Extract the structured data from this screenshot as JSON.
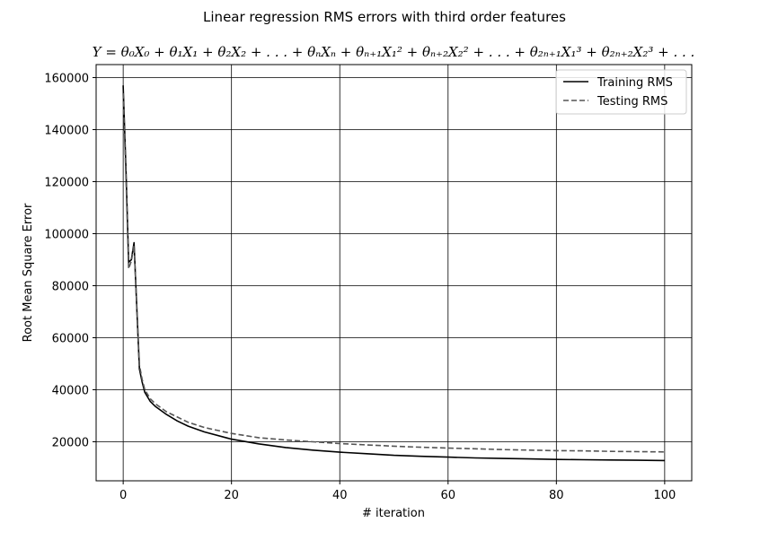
{
  "chart_data": {
    "type": "line",
    "title": "Linear regression RMS errors with third order features",
    "subtitle": "Y = θ₀X₀ + θ₁X₁ + θ₂X₂ + . . . + θₙXₙ + θₙ₊₁X₁² + θₙ₊₂X₂² + . . . + θ₂ₙ₊₁X₁³ + θ₂ₙ₊₂X₂³ + . . .",
    "xlabel": "# iteration",
    "ylabel": "Root Mean Square Error",
    "xlim": [
      -5,
      105
    ],
    "ylim": [
      5000,
      165000
    ],
    "xticks": [
      0,
      20,
      40,
      60,
      80,
      100
    ],
    "yticks": [
      20000,
      40000,
      60000,
      80000,
      100000,
      120000,
      140000,
      160000
    ],
    "grid": true,
    "legend_position": "top-right",
    "series": [
      {
        "name": "Training RMS",
        "style": "solid",
        "color": "#000000",
        "x": [
          0,
          0.5,
          1,
          1.5,
          2,
          2.5,
          3,
          3.5,
          4,
          5,
          6,
          8,
          10,
          12,
          15,
          20,
          25,
          30,
          35,
          40,
          45,
          50,
          55,
          60,
          65,
          70,
          75,
          80,
          85,
          90,
          95,
          100
        ],
        "y": [
          157000,
          125000,
          89000,
          90000,
          96500,
          72000,
          48000,
          43000,
          39000,
          35500,
          33500,
          30500,
          28000,
          26000,
          23800,
          21000,
          19200,
          17800,
          16800,
          16000,
          15400,
          14800,
          14400,
          14100,
          13800,
          13600,
          13400,
          13200,
          13100,
          13000,
          12900,
          12800
        ]
      },
      {
        "name": "Testing RMS",
        "style": "dashed",
        "color": "#555555",
        "x": [
          0,
          0.5,
          1,
          1.5,
          2,
          2.5,
          3,
          3.5,
          4,
          5,
          6,
          8,
          10,
          12,
          15,
          20,
          25,
          30,
          35,
          40,
          45,
          50,
          55,
          60,
          65,
          70,
          75,
          80,
          85,
          90,
          95,
          100
        ],
        "y": [
          154000,
          122000,
          86500,
          89500,
          95500,
          73000,
          49500,
          44000,
          40000,
          36500,
          34500,
          31500,
          29500,
          27500,
          25500,
          23200,
          21600,
          20700,
          20000,
          19300,
          18800,
          18300,
          17900,
          17600,
          17300,
          17000,
          16800,
          16600,
          16500,
          16300,
          16200,
          16100
        ]
      }
    ]
  }
}
